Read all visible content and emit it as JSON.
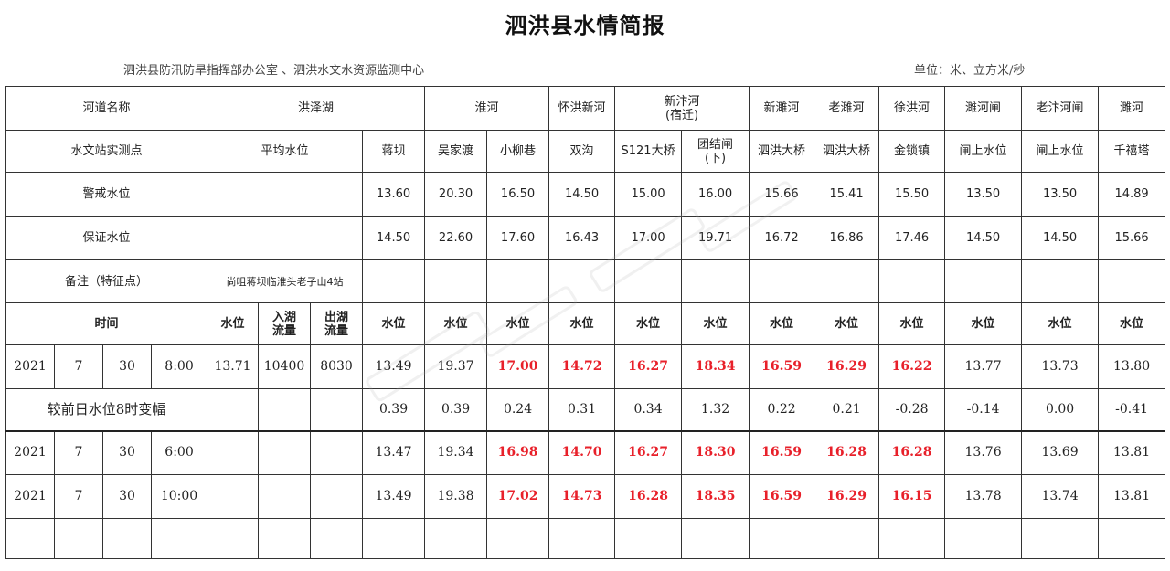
{
  "header": {
    "title": "泗洪县水情简报",
    "org": "泗洪县防汛防旱指挥部办公室 、泗洪水文水资源监测中心",
    "unit": "单位：米、立方米/秒"
  },
  "table": {
    "row_river_label": "河道名称",
    "rivers": [
      "洪泽湖",
      "淮河",
      "怀洪新河",
      "新汴河\n(宿迁)",
      "新濉河",
      "老濉河",
      "徐洪河",
      "濉河闸",
      "老汴河闸",
      "濉河"
    ],
    "row_station_label": "水文站实测点",
    "avg_level_label": "平均水位",
    "stations": [
      "蒋坝",
      "吴家渡",
      "小柳巷",
      "双沟",
      "S121大桥",
      "团结闸\n(下)",
      "泗洪大桥",
      "泗洪大桥",
      "金锁镇",
      "闸上水位",
      "闸上水位",
      "千禧塔"
    ],
    "warning_label": "警戒水位",
    "warning_levels": [
      "13.60",
      "20.30",
      "16.50",
      "14.50",
      "15.00",
      "16.00",
      "15.66",
      "15.41",
      "15.50",
      "13.50",
      "13.50",
      "14.89"
    ],
    "guarantee_label": "保证水位",
    "guarantee_levels": [
      "14.50",
      "22.60",
      "17.60",
      "16.43",
      "17.00",
      "19.71",
      "16.72",
      "16.86",
      "17.46",
      "14.50",
      "14.50",
      "15.66"
    ],
    "remark_label": "备注（特征点）",
    "remark_value": "尚咀蒋坝临淮头老子山4站",
    "time_label": "时间",
    "level_label": "水位",
    "inflow_label": "入湖\n流量",
    "outflow_label": "出湖\n流量",
    "main_row": {
      "year": "2021",
      "month": "7",
      "day": "30",
      "time": "8:00",
      "avg_level": "13.71",
      "inflow": "10400",
      "outflow": "8030",
      "values": [
        "13.49",
        "19.37",
        "17.00",
        "14.72",
        "16.27",
        "18.34",
        "16.59",
        "16.29",
        "16.22",
        "13.77",
        "13.73",
        "13.80"
      ]
    },
    "change_label": "较前日水位8时变幅",
    "change_values": [
      "0.39",
      "0.39",
      "0.24",
      "0.31",
      "0.34",
      "1.32",
      "0.22",
      "0.21",
      "-0.28",
      "-0.14",
      "0.00",
      "-0.41"
    ],
    "rows": [
      {
        "year": "2021",
        "month": "7",
        "day": "30",
        "time": "6:00",
        "values": [
          "13.47",
          "19.34",
          "16.98",
          "14.70",
          "16.27",
          "18.30",
          "16.59",
          "16.28",
          "16.28",
          "13.76",
          "13.69",
          "13.81"
        ]
      },
      {
        "year": "2021",
        "month": "7",
        "day": "30",
        "time": "10:00",
        "values": [
          "13.49",
          "19.38",
          "17.02",
          "14.73",
          "16.28",
          "18.35",
          "16.59",
          "16.29",
          "16.15",
          "13.78",
          "13.74",
          "13.81"
        ]
      }
    ],
    "red_columns": [
      2,
      3,
      4,
      5,
      6,
      7,
      8
    ],
    "red_color": "#e8202a"
  }
}
